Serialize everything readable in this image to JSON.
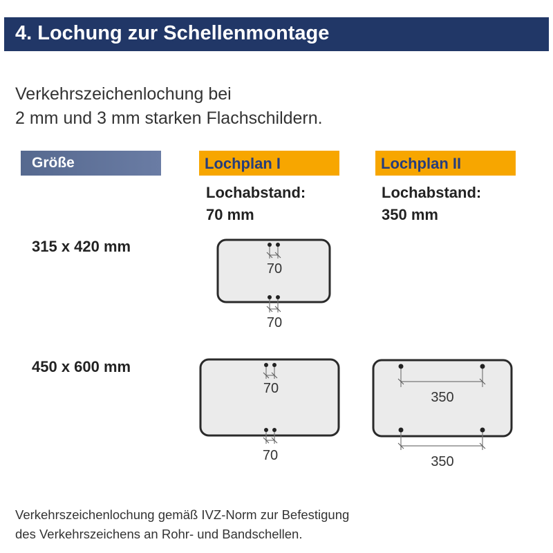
{
  "header": {
    "title": "4. Lochung zur Schellenmontage"
  },
  "intro": {
    "line1": "Verkehrszeichenlochung bei",
    "line2": "2 mm und 3 mm starken Flachschildern."
  },
  "table": {
    "size_header": "Größe",
    "plans": [
      {
        "title": "Lochplan I",
        "spacing_label": "Lochabstand:",
        "spacing_value": "70 mm"
      },
      {
        "title": "Lochplan II",
        "spacing_label": "Lochabstand:",
        "spacing_value": "350 mm"
      }
    ],
    "rows": [
      {
        "size": "315 x 420 mm",
        "plan1": {
          "top_dim": "70",
          "bottom_dim": "70"
        }
      },
      {
        "size": "450 x 600 mm",
        "plan1": {
          "top_dim": "70",
          "bottom_dim": "70"
        },
        "plan2": {
          "top_dim": "350",
          "bottom_dim": "350"
        }
      }
    ]
  },
  "colors": {
    "header_bg": "#213767",
    "size_header_bg": "#5e7198",
    "plan_header_bg": "#f7a600",
    "plan_header_text": "#263d7c",
    "sign_fill": "#ebebeb"
  },
  "footer": {
    "line1": "Verkehrszeichenlochung gemäß IVZ-Norm zur Befestigung",
    "line2": "des Verkehrszeichens an Rohr- und Bandschellen."
  }
}
